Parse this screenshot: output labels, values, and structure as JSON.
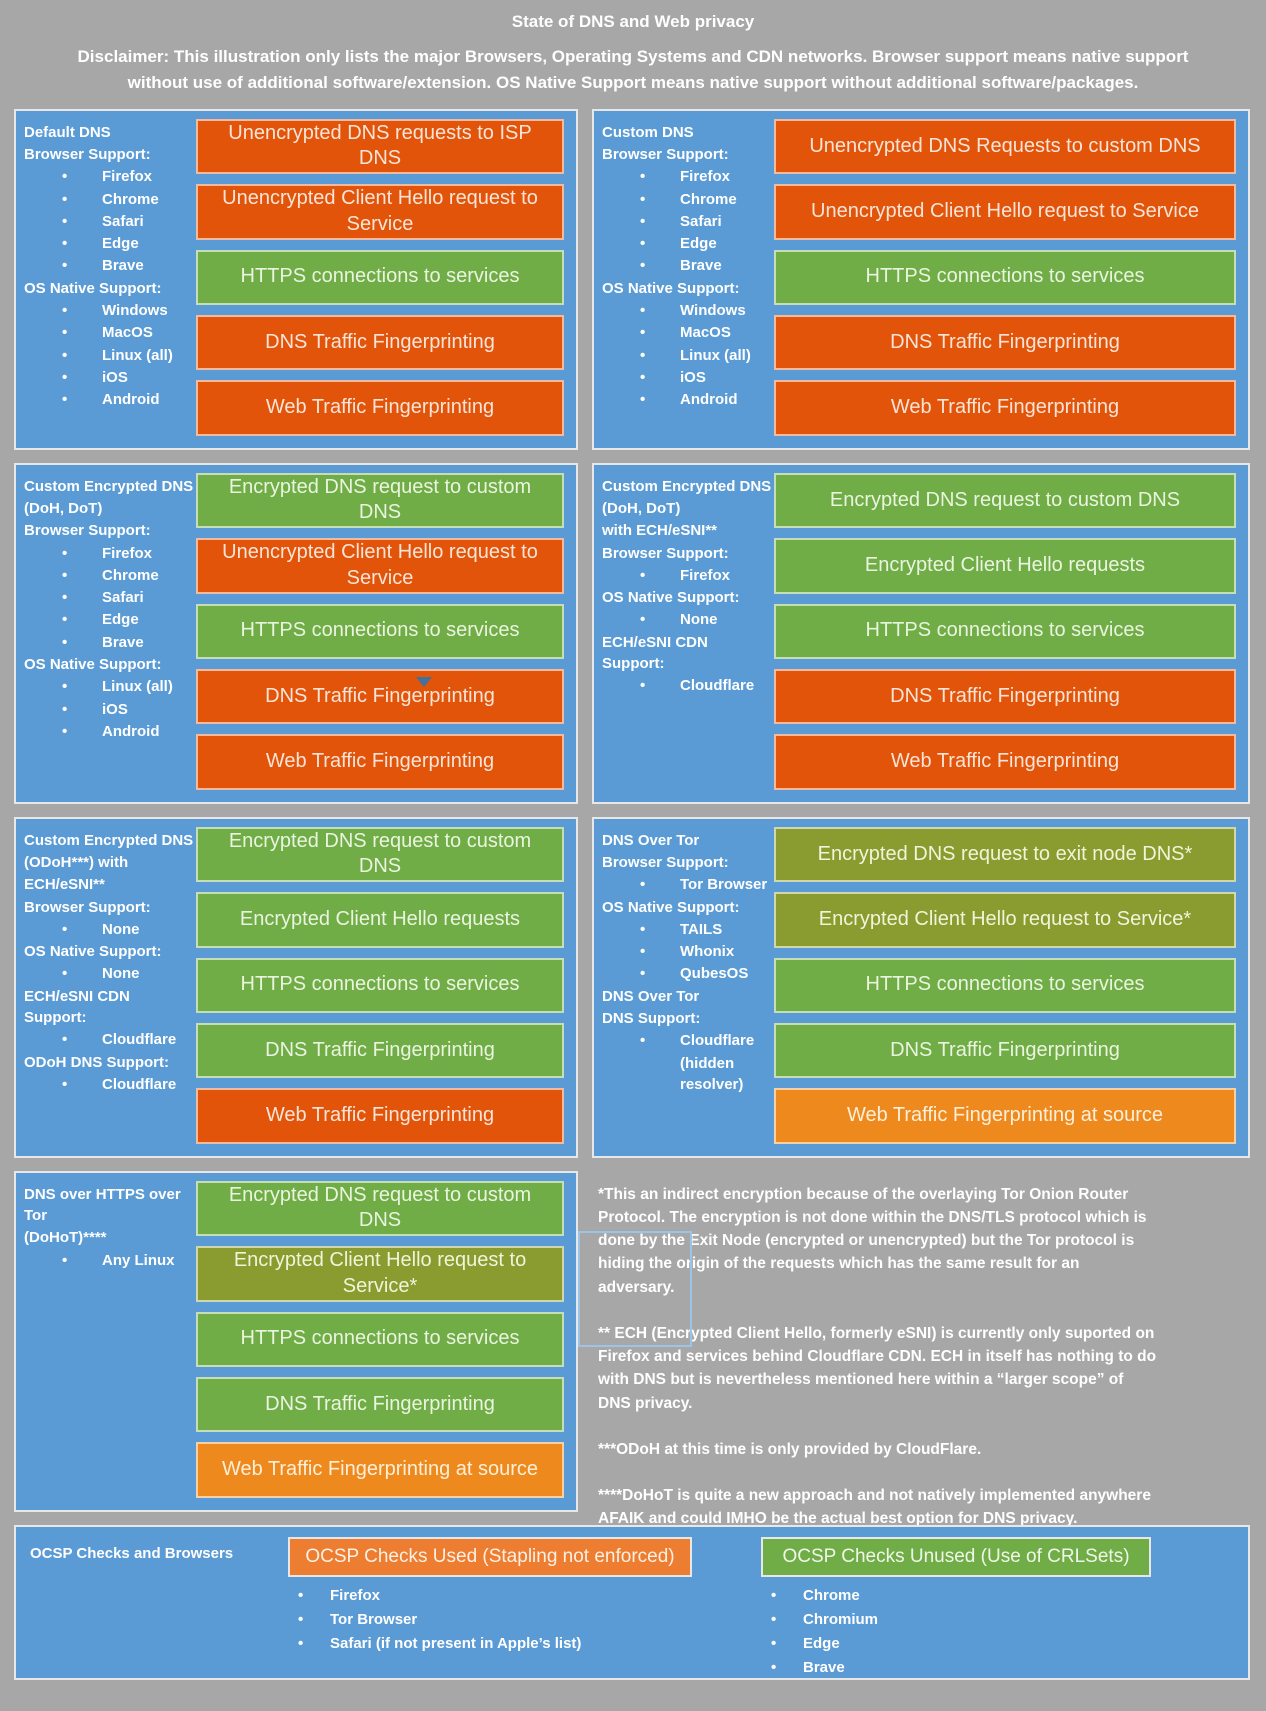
{
  "header": {
    "title": "State of DNS and Web privacy",
    "disclaimer": "Disclaimer: This illustration only lists the major Browsers, Operating Systems and CDN networks. Browser support means native support without use of additional software/extension. OS Native Support means native support without additional software/packages."
  },
  "colors": {
    "background": "#A7A7A7",
    "panel_blue": "#5B9BD5",
    "bad_orange": "#E2540A",
    "good_green": "#70AD47",
    "indirect_olive": "#8A9B30",
    "warn_amber": "#EE8A1D",
    "ocsp_used_orange": "#ED7D31"
  },
  "panels": [
    {
      "id": "default-dns",
      "left": [
        {
          "t": "h",
          "text": "Default DNS"
        },
        {
          "t": "h",
          "text": "Browser Support:"
        },
        {
          "t": "b",
          "text": "Firefox"
        },
        {
          "t": "b",
          "text": "Chrome"
        },
        {
          "t": "b",
          "text": "Safari"
        },
        {
          "t": "b",
          "text": "Edge"
        },
        {
          "t": "b",
          "text": "Brave"
        },
        {
          "t": "h",
          "text": "OS Native Support:"
        },
        {
          "t": "b",
          "text": "Windows"
        },
        {
          "t": "b",
          "text": "MacOS"
        },
        {
          "t": "b",
          "text": "Linux (all)"
        },
        {
          "t": "b",
          "text": "iOS"
        },
        {
          "t": "b",
          "text": "Android"
        }
      ],
      "bars": [
        {
          "label": "Unencrypted DNS requests to ISP DNS",
          "tone": "bad"
        },
        {
          "label": "Unencrypted Client Hello request to Service",
          "tone": "bad"
        },
        {
          "label": "HTTPS connections to services",
          "tone": "good"
        },
        {
          "label": "DNS Traffic Fingerprinting",
          "tone": "bad"
        },
        {
          "label": "Web Traffic Fingerprinting",
          "tone": "bad"
        }
      ]
    },
    {
      "id": "custom-dns",
      "left": [
        {
          "t": "h",
          "text": "Custom DNS"
        },
        {
          "t": "h",
          "text": "Browser Support:"
        },
        {
          "t": "b",
          "text": "Firefox"
        },
        {
          "t": "b",
          "text": "Chrome"
        },
        {
          "t": "b",
          "text": "Safari"
        },
        {
          "t": "b",
          "text": "Edge"
        },
        {
          "t": "b",
          "text": "Brave"
        },
        {
          "t": "h",
          "text": "OS Native Support:"
        },
        {
          "t": "b",
          "text": "Windows"
        },
        {
          "t": "b",
          "text": "MacOS"
        },
        {
          "t": "b",
          "text": "Linux (all)"
        },
        {
          "t": "b",
          "text": "iOS"
        },
        {
          "t": "b",
          "text": "Android"
        }
      ],
      "bars": [
        {
          "label": "Unencrypted DNS Requests to custom DNS",
          "tone": "bad"
        },
        {
          "label": "Unencrypted Client Hello request to Service",
          "tone": "bad"
        },
        {
          "label": "HTTPS connections to services",
          "tone": "good"
        },
        {
          "label": "DNS Traffic Fingerprinting",
          "tone": "bad"
        },
        {
          "label": "Web Traffic Fingerprinting",
          "tone": "bad"
        }
      ]
    },
    {
      "id": "custom-encrypted-dns-doh-dot",
      "left": [
        {
          "t": "h",
          "text": "Custom Encrypted DNS"
        },
        {
          "t": "h",
          "text": "(DoH, DoT)"
        },
        {
          "t": "h",
          "text": "Browser Support:"
        },
        {
          "t": "b",
          "text": "Firefox"
        },
        {
          "t": "b",
          "text": "Chrome"
        },
        {
          "t": "b",
          "text": "Safari"
        },
        {
          "t": "b",
          "text": "Edge"
        },
        {
          "t": "b",
          "text": "Brave"
        },
        {
          "t": "h",
          "text": "OS Native Support:"
        },
        {
          "t": "b",
          "text": "Linux (all)"
        },
        {
          "t": "b",
          "text": "iOS"
        },
        {
          "t": "b",
          "text": "Android"
        }
      ],
      "bars": [
        {
          "label": "Encrypted DNS request to custom DNS",
          "tone": "good"
        },
        {
          "label": "Unencrypted Client Hello request to Service",
          "tone": "bad"
        },
        {
          "label": "HTTPS connections to services",
          "tone": "good"
        },
        {
          "label": "DNS Traffic Fingerprinting",
          "tone": "bad"
        },
        {
          "label": "Web Traffic Fingerprinting",
          "tone": "bad"
        }
      ]
    },
    {
      "id": "custom-encrypted-dns-ech",
      "left": [
        {
          "t": "h",
          "text": "Custom Encrypted DNS"
        },
        {
          "t": "h",
          "text": "(DoH, DoT)"
        },
        {
          "t": "h",
          "text": "with ECH/eSNI**"
        },
        {
          "t": "h",
          "text": "Browser Support:"
        },
        {
          "t": "b",
          "text": "Firefox"
        },
        {
          "t": "h",
          "text": "OS Native Support:"
        },
        {
          "t": "b",
          "text": "None"
        },
        {
          "t": "h",
          "text": "ECH/eSNI CDN Support:"
        },
        {
          "t": "b",
          "text": "Cloudflare"
        }
      ],
      "bars": [
        {
          "label": "Encrypted DNS request to custom DNS",
          "tone": "good"
        },
        {
          "label": "Encrypted Client Hello requests",
          "tone": "good"
        },
        {
          "label": "HTTPS connections to services",
          "tone": "good"
        },
        {
          "label": "DNS Traffic Fingerprinting",
          "tone": "bad"
        },
        {
          "label": "Web Traffic Fingerprinting",
          "tone": "bad"
        }
      ]
    },
    {
      "id": "custom-encrypted-dns-odoh",
      "left": [
        {
          "t": "h",
          "text": "Custom Encrypted DNS"
        },
        {
          "t": "h",
          "text": "(ODoH***) with"
        },
        {
          "t": "h",
          "text": "ECH/eSNI**"
        },
        {
          "t": "h",
          "text": "Browser Support:"
        },
        {
          "t": "b",
          "text": "None"
        },
        {
          "t": "h",
          "text": "OS Native Support:"
        },
        {
          "t": "b",
          "text": "None"
        },
        {
          "t": "h",
          "text": "ECH/eSNI CDN Support:"
        },
        {
          "t": "b",
          "text": "Cloudflare"
        },
        {
          "t": "h",
          "text": "ODoH DNS Support:"
        },
        {
          "t": "b",
          "text": "Cloudflare"
        }
      ],
      "bars": [
        {
          "label": "Encrypted DNS request to custom DNS",
          "tone": "good"
        },
        {
          "label": "Encrypted Client Hello requests",
          "tone": "good"
        },
        {
          "label": "HTTPS connections to services",
          "tone": "good"
        },
        {
          "label": "DNS Traffic Fingerprinting",
          "tone": "good"
        },
        {
          "label": "Web Traffic Fingerprinting",
          "tone": "bad"
        }
      ]
    },
    {
      "id": "dns-over-tor",
      "left": [
        {
          "t": "h",
          "text": "DNS Over Tor"
        },
        {
          "t": "h",
          "text": "Browser Support:"
        },
        {
          "t": "b",
          "text": "Tor Browser"
        },
        {
          "t": "h",
          "text": "OS Native Support:"
        },
        {
          "t": "b",
          "text": "TAILS"
        },
        {
          "t": "b",
          "text": "Whonix"
        },
        {
          "t": "b",
          "text": "QubesOS"
        },
        {
          "t": "h",
          "text": "DNS Over Tor"
        },
        {
          "t": "h",
          "text": "DNS Support:"
        },
        {
          "t": "b",
          "text": "Cloudflare"
        },
        {
          "t": "p",
          "text": "(hidden resolver)"
        }
      ],
      "bars": [
        {
          "label": "Encrypted DNS request to exit node DNS*",
          "tone": "indirect"
        },
        {
          "label": "Encrypted Client Hello request to Service*",
          "tone": "indirect"
        },
        {
          "label": "HTTPS connections to services",
          "tone": "good"
        },
        {
          "label": "DNS Traffic Fingerprinting",
          "tone": "good"
        },
        {
          "label": "Web Traffic Fingerprinting at source",
          "tone": "warn"
        }
      ]
    },
    {
      "id": "dohot",
      "left": [
        {
          "t": "h",
          "text": "DNS over HTTPS over Tor"
        },
        {
          "t": "h",
          "text": "(DoHoT)****"
        },
        {
          "t": "b",
          "text": "Any Linux"
        }
      ],
      "bars": [
        {
          "label": "Encrypted DNS request to custom DNS",
          "tone": "good"
        },
        {
          "label": "Encrypted Client Hello request to Service*",
          "tone": "indirect"
        },
        {
          "label": "HTTPS connections to services",
          "tone": "good"
        },
        {
          "label": "DNS Traffic Fingerprinting",
          "tone": "good"
        },
        {
          "label": "Web Traffic Fingerprinting at source",
          "tone": "warn"
        }
      ]
    }
  ],
  "footnotes": [
    "*This an indirect encryption because of the overlaying Tor Onion Router Protocol. The encryption is not done within the DNS/TLS protocol which is done by the Exit Node (encrypted or unencrypted) but the Tor protocol is hiding the origin of the requests which has the same result for an adversary.",
    "** ECH (Encrypted Client Hello, formerly eSNI) is currently only suported on Firefox and services behind Cloudflare CDN. ECH in itself has nothing to do with DNS but is nevertheless mentioned here within a “larger scope” of DNS privacy.",
    "***ODoH at this time is only provided by CloudFlare.",
    "****DoHoT is quite a new approach and not natively implemented anywhere AFAIK and could IMHO be the actual best option for DNS privacy."
  ],
  "ocsp": {
    "title": "OCSP Checks and Browsers",
    "used": {
      "label": "OCSP Checks Used (Stapling not enforced)",
      "items": [
        "Firefox",
        "Tor Browser",
        "Safari (if not present in Apple’s list)"
      ]
    },
    "unused": {
      "label": "OCSP Checks Unused (Use of CRLSets)",
      "items": [
        "Chrome",
        "Chromium",
        "Edge",
        "Brave"
      ]
    }
  }
}
